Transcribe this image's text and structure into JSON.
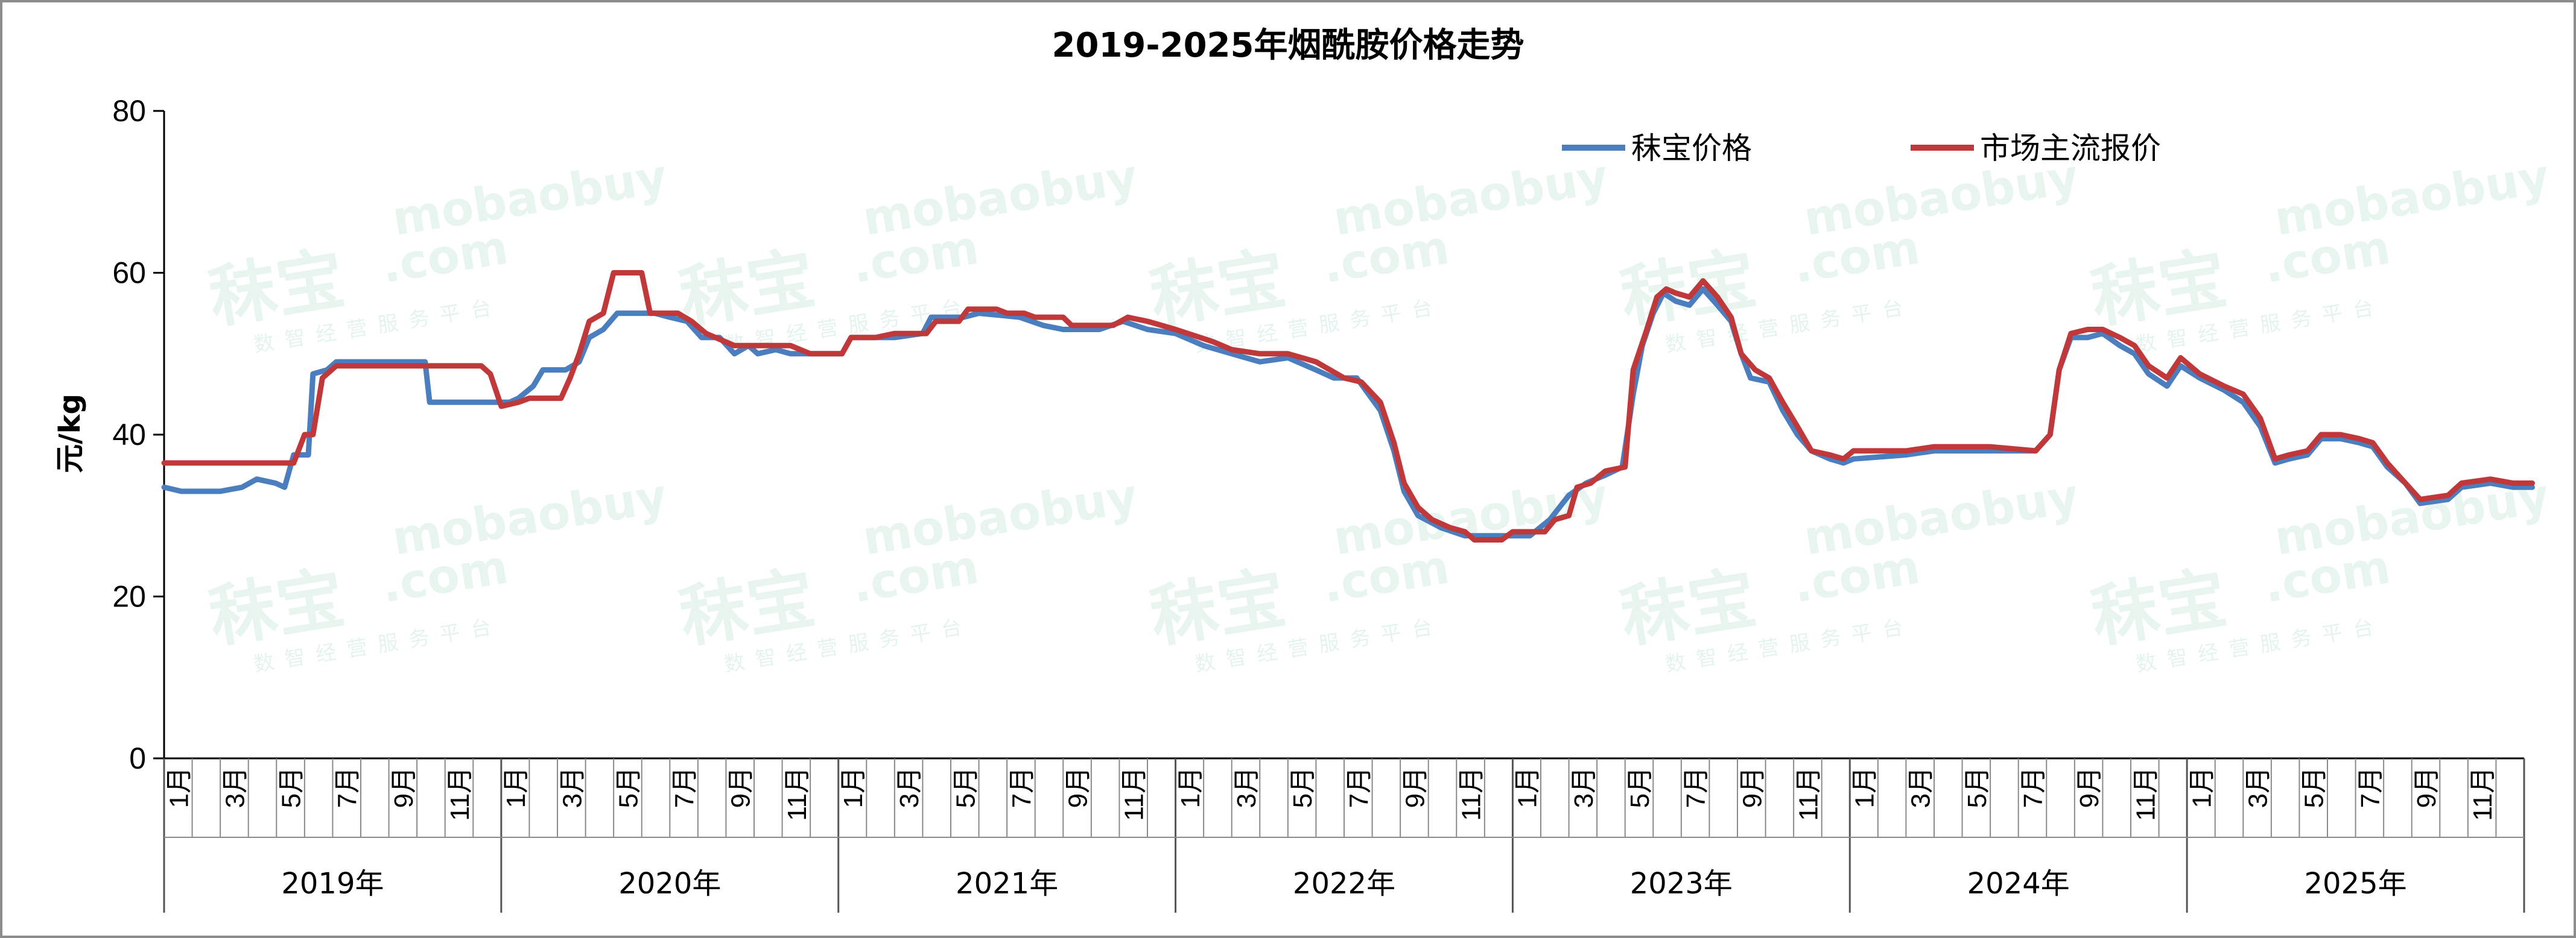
{
  "chart_data": {
    "type": "line",
    "title": "2019-2025年烟酰胺价格走势",
    "ylabel": "元/kg",
    "ylim": [
      0,
      80
    ],
    "yticks": [
      "0",
      "20",
      "40",
      "60",
      "80"
    ],
    "grid": false,
    "legend_position": "top-right",
    "years": [
      "2019年",
      "2020年",
      "2021年",
      "2022年",
      "2023年",
      "2024年",
      "2025年"
    ],
    "month_labels": [
      "1月",
      "3月",
      "5月",
      "7月",
      "9月",
      "11月"
    ],
    "x_range": [
      "2019-01",
      "2025-12"
    ],
    "series": [
      {
        "name": "秣宝价格",
        "color": "#4a7ebf",
        "points": [
          [
            "2019-01-01",
            33.5
          ],
          [
            "2019-01-20",
            33
          ],
          [
            "2019-03-01",
            33
          ],
          [
            "2019-03-25",
            33.5
          ],
          [
            "2019-04-10",
            34.5
          ],
          [
            "2019-04-30",
            34
          ],
          [
            "2019-05-10",
            33.5
          ],
          [
            "2019-05-20",
            37.5
          ],
          [
            "2019-06-05",
            37.5
          ],
          [
            "2019-06-10",
            47.5
          ],
          [
            "2019-06-25",
            48
          ],
          [
            "2019-07-05",
            49
          ],
          [
            "2019-10-10",
            49
          ],
          [
            "2019-10-15",
            44
          ],
          [
            "2019-12-01",
            44
          ],
          [
            "2020-01-10",
            44
          ],
          [
            "2020-01-20",
            44.5
          ],
          [
            "2020-02-05",
            46
          ],
          [
            "2020-02-15",
            48
          ],
          [
            "2020-03-10",
            48
          ],
          [
            "2020-03-25",
            49
          ],
          [
            "2020-04-05",
            52
          ],
          [
            "2020-04-20",
            53
          ],
          [
            "2020-05-05",
            55
          ],
          [
            "2020-06-15",
            55
          ],
          [
            "2020-07-01",
            54.5
          ],
          [
            "2020-07-20",
            54
          ],
          [
            "2020-08-05",
            52
          ],
          [
            "2020-08-25",
            52
          ],
          [
            "2020-09-10",
            50
          ],
          [
            "2020-09-25",
            51
          ],
          [
            "2020-10-05",
            50
          ],
          [
            "2020-10-25",
            50.5
          ],
          [
            "2020-11-10",
            50
          ],
          [
            "2021-01-05",
            50
          ],
          [
            "2021-01-15",
            52
          ],
          [
            "2021-03-01",
            52
          ],
          [
            "2021-04-01",
            52.5
          ],
          [
            "2021-04-10",
            54.5
          ],
          [
            "2021-05-15",
            54.5
          ],
          [
            "2021-06-01",
            55
          ],
          [
            "2021-07-15",
            54.5
          ],
          [
            "2021-08-10",
            53.5
          ],
          [
            "2021-09-01",
            53
          ],
          [
            "2021-10-10",
            53
          ],
          [
            "2021-11-05",
            54
          ],
          [
            "2021-12-01",
            53
          ],
          [
            "2022-01-01",
            52.5
          ],
          [
            "2022-02-01",
            51
          ],
          [
            "2022-03-01",
            50
          ],
          [
            "2022-04-01",
            49
          ],
          [
            "2022-05-01",
            49.5
          ],
          [
            "2022-06-01",
            48
          ],
          [
            "2022-06-20",
            47
          ],
          [
            "2022-07-15",
            47
          ],
          [
            "2022-08-10",
            43
          ],
          [
            "2022-08-25",
            38
          ],
          [
            "2022-09-05",
            33
          ],
          [
            "2022-09-20",
            30
          ],
          [
            "2022-10-15",
            28.5
          ],
          [
            "2022-11-10",
            27.5
          ],
          [
            "2022-12-20",
            27.5
          ],
          [
            "2023-01-20",
            27.5
          ],
          [
            "2023-02-10",
            29.5
          ],
          [
            "2023-03-01",
            32.5
          ],
          [
            "2023-03-20",
            34
          ],
          [
            "2023-04-10",
            35
          ],
          [
            "2023-04-28",
            36
          ],
          [
            "2023-05-10",
            45
          ],
          [
            "2023-05-20",
            51
          ],
          [
            "2023-06-01",
            55
          ],
          [
            "2023-06-12",
            57.5
          ],
          [
            "2023-06-25",
            56.5
          ],
          [
            "2023-07-10",
            56
          ],
          [
            "2023-07-25",
            58
          ],
          [
            "2023-08-10",
            56
          ],
          [
            "2023-08-25",
            54
          ],
          [
            "2023-09-05",
            50
          ],
          [
            "2023-09-15",
            47
          ],
          [
            "2023-10-05",
            46.5
          ],
          [
            "2023-10-20",
            43
          ],
          [
            "2023-11-05",
            40
          ],
          [
            "2023-11-20",
            38
          ],
          [
            "2023-12-10",
            37
          ],
          [
            "2023-12-25",
            36.5
          ],
          [
            "2024-01-05",
            37
          ],
          [
            "2024-03-01",
            37.5
          ],
          [
            "2024-04-01",
            38
          ],
          [
            "2024-05-15",
            38
          ],
          [
            "2024-07-20",
            38
          ],
          [
            "2024-08-05",
            40
          ],
          [
            "2024-08-15",
            48
          ],
          [
            "2024-08-28",
            52
          ],
          [
            "2024-09-15",
            52
          ],
          [
            "2024-10-01",
            52.5
          ],
          [
            "2024-10-20",
            51
          ],
          [
            "2024-11-05",
            50
          ],
          [
            "2024-11-20",
            47.5
          ],
          [
            "2024-12-10",
            46
          ],
          [
            "2024-12-25",
            48.5
          ],
          [
            "2025-01-15",
            47
          ],
          [
            "2025-02-10",
            45.5
          ],
          [
            "2025-03-01",
            44
          ],
          [
            "2025-03-20",
            41
          ],
          [
            "2025-04-05",
            36.5
          ],
          [
            "2025-04-20",
            37
          ],
          [
            "2025-05-10",
            37.5
          ],
          [
            "2025-05-25",
            39.5
          ],
          [
            "2025-06-15",
            39.5
          ],
          [
            "2025-07-05",
            39
          ],
          [
            "2025-07-20",
            38.5
          ],
          [
            "2025-08-05",
            36
          ],
          [
            "2025-08-25",
            34
          ],
          [
            "2025-09-10",
            31.5
          ],
          [
            "2025-10-10",
            32
          ],
          [
            "2025-10-25",
            33.5
          ],
          [
            "2025-11-25",
            34
          ],
          [
            "2025-12-20",
            33.5
          ],
          [
            "2026-01-10",
            33.5
          ]
        ]
      },
      {
        "name": "市场主流报价",
        "color": "#c0383a",
        "points": [
          [
            "2019-01-01",
            36.5
          ],
          [
            "2019-05-20",
            36.5
          ],
          [
            "2019-06-01",
            40
          ],
          [
            "2019-06-10",
            40
          ],
          [
            "2019-06-20",
            47
          ],
          [
            "2019-07-05",
            48.5
          ],
          [
            "2019-11-01",
            48.5
          ],
          [
            "2019-12-10",
            48.5
          ],
          [
            "2019-12-20",
            47.5
          ],
          [
            "2020-01-01",
            43.5
          ],
          [
            "2020-01-20",
            44
          ],
          [
            "2020-02-01",
            44.5
          ],
          [
            "2020-03-05",
            44.5
          ],
          [
            "2020-03-15",
            47
          ],
          [
            "2020-03-25",
            50
          ],
          [
            "2020-04-05",
            54
          ],
          [
            "2020-04-20",
            55
          ],
          [
            "2020-05-01",
            60
          ],
          [
            "2020-06-01",
            60
          ],
          [
            "2020-06-10",
            55
          ],
          [
            "2020-07-10",
            55
          ],
          [
            "2020-07-25",
            54
          ],
          [
            "2020-08-10",
            52.5
          ],
          [
            "2020-09-10",
            51
          ],
          [
            "2020-11-10",
            51
          ],
          [
            "2020-12-01",
            50
          ],
          [
            "2021-01-05",
            50
          ],
          [
            "2021-01-15",
            52
          ],
          [
            "2021-02-10",
            52
          ],
          [
            "2021-03-01",
            52.5
          ],
          [
            "2021-04-05",
            52.5
          ],
          [
            "2021-04-15",
            54
          ],
          [
            "2021-05-10",
            54
          ],
          [
            "2021-05-20",
            55.5
          ],
          [
            "2021-06-20",
            55.5
          ],
          [
            "2021-07-01",
            55
          ],
          [
            "2021-07-20",
            55
          ],
          [
            "2021-08-01",
            54.5
          ],
          [
            "2021-09-01",
            54.5
          ],
          [
            "2021-09-10",
            53.5
          ],
          [
            "2021-10-25",
            53.5
          ],
          [
            "2021-11-10",
            54.5
          ],
          [
            "2021-12-01",
            54
          ],
          [
            "2022-01-01",
            53
          ],
          [
            "2022-02-10",
            51.5
          ],
          [
            "2022-03-01",
            50.5
          ],
          [
            "2022-04-01",
            50
          ],
          [
            "2022-04-20",
            50
          ],
          [
            "2022-05-01",
            50
          ],
          [
            "2022-06-01",
            49
          ],
          [
            "2022-07-01",
            47
          ],
          [
            "2022-07-20",
            46.5
          ],
          [
            "2022-08-10",
            44
          ],
          [
            "2022-08-25",
            39
          ],
          [
            "2022-09-05",
            34
          ],
          [
            "2022-09-20",
            31
          ],
          [
            "2022-10-05",
            29.5
          ],
          [
            "2022-10-25",
            28.5
          ],
          [
            "2022-11-10",
            28
          ],
          [
            "2022-11-20",
            27
          ],
          [
            "2022-12-20",
            27
          ],
          [
            "2023-01-01",
            28
          ],
          [
            "2023-01-20",
            28
          ],
          [
            "2023-02-05",
            28
          ],
          [
            "2023-02-15",
            29.5
          ],
          [
            "2023-03-01",
            30
          ],
          [
            "2023-03-10",
            33.5
          ],
          [
            "2023-03-25",
            34
          ],
          [
            "2023-04-10",
            35.5
          ],
          [
            "2023-05-01",
            36
          ],
          [
            "2023-05-10",
            48
          ],
          [
            "2023-05-25",
            53
          ],
          [
            "2023-06-05",
            57
          ],
          [
            "2023-06-15",
            58
          ],
          [
            "2023-06-25",
            57.5
          ],
          [
            "2023-07-10",
            57
          ],
          [
            "2023-07-25",
            59
          ],
          [
            "2023-08-10",
            57
          ],
          [
            "2023-08-25",
            54.5
          ],
          [
            "2023-09-05",
            50
          ],
          [
            "2023-09-20",
            48
          ],
          [
            "2023-10-05",
            47
          ],
          [
            "2023-10-20",
            44
          ],
          [
            "2023-11-05",
            41
          ],
          [
            "2023-11-20",
            38
          ],
          [
            "2023-12-10",
            37.5
          ],
          [
            "2023-12-25",
            37
          ],
          [
            "2024-01-05",
            38
          ],
          [
            "2024-03-01",
            38
          ],
          [
            "2024-04-01",
            38.5
          ],
          [
            "2024-06-01",
            38.5
          ],
          [
            "2024-07-20",
            38
          ],
          [
            "2024-08-05",
            40
          ],
          [
            "2024-08-15",
            48
          ],
          [
            "2024-08-28",
            52.5
          ],
          [
            "2024-09-15",
            53
          ],
          [
            "2024-10-01",
            53
          ],
          [
            "2024-10-20",
            52
          ],
          [
            "2024-11-05",
            51
          ],
          [
            "2024-11-20",
            48.5
          ],
          [
            "2024-12-10",
            47
          ],
          [
            "2024-12-25",
            49.5
          ],
          [
            "2025-01-15",
            47.5
          ],
          [
            "2025-02-10",
            46
          ],
          [
            "2025-03-01",
            45
          ],
          [
            "2025-03-20",
            42
          ],
          [
            "2025-04-05",
            37
          ],
          [
            "2025-04-20",
            37.5
          ],
          [
            "2025-05-10",
            38
          ],
          [
            "2025-05-25",
            40
          ],
          [
            "2025-06-15",
            40
          ],
          [
            "2025-07-05",
            39.5
          ],
          [
            "2025-07-20",
            39
          ],
          [
            "2025-08-05",
            36.5
          ],
          [
            "2025-08-25",
            34
          ],
          [
            "2025-09-10",
            32
          ],
          [
            "2025-10-10",
            32.5
          ],
          [
            "2025-10-25",
            34
          ],
          [
            "2025-11-25",
            34.5
          ],
          [
            "2025-12-20",
            34
          ],
          [
            "2026-01-10",
            34
          ]
        ]
      }
    ]
  },
  "watermark": {
    "main": "秣宝",
    "domain_top": "mobaobuy",
    "domain_bottom": ".com",
    "tagline": "数智经营服务平台"
  }
}
